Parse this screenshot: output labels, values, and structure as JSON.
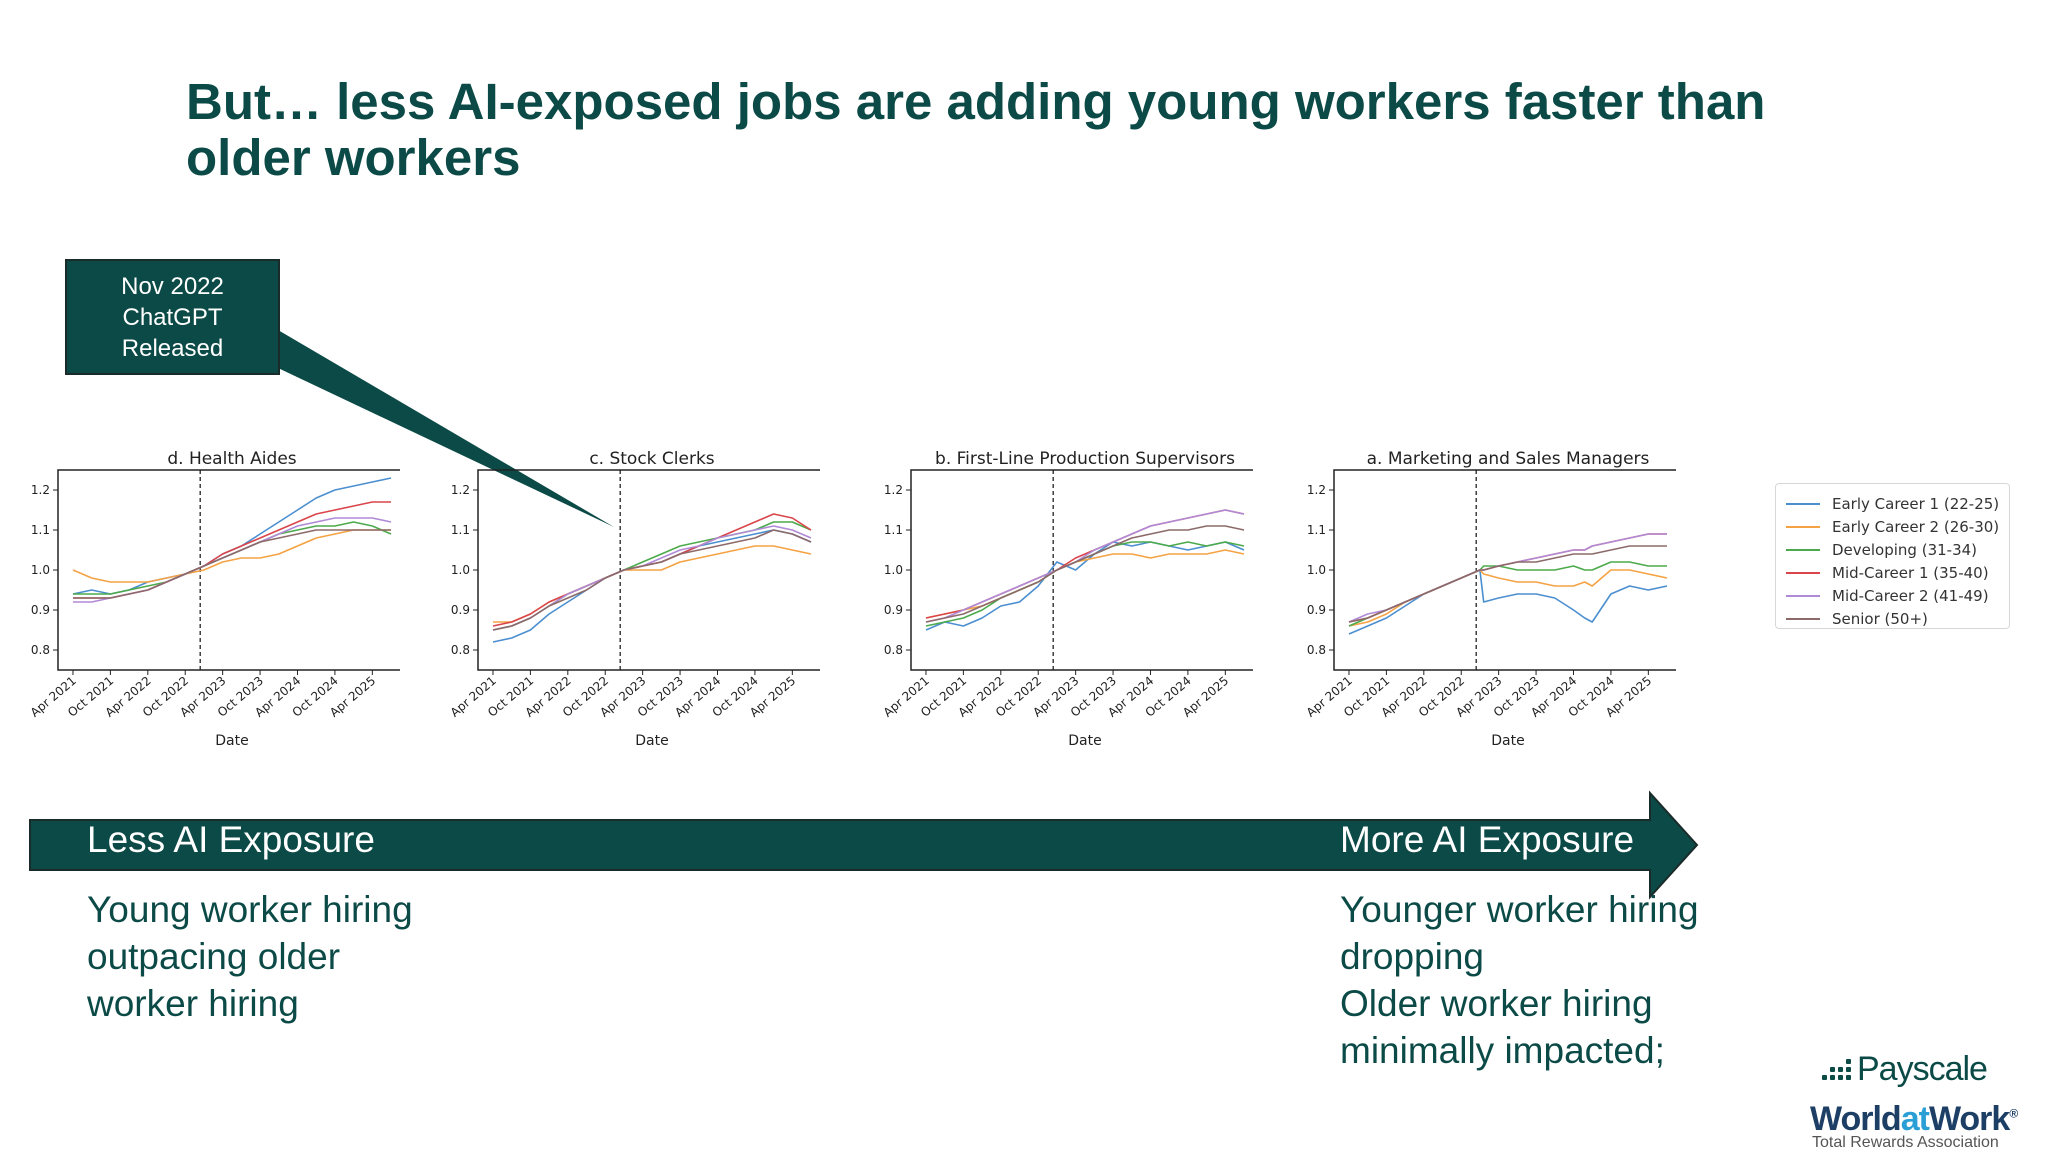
{
  "title": "But… less AI-exposed jobs are adding young workers faster than older workers",
  "callout": {
    "lines": [
      "Nov 2022",
      "ChatGPT",
      "Released"
    ],
    "color": "#0b4a46"
  },
  "colors": {
    "brand_dark": "#0b4a46",
    "logo_blue": "#2a9fd6"
  },
  "legend": [
    {
      "label": "Early Career 1 (22-25)",
      "color": "#4c8fd0"
    },
    {
      "label": "Early Career 2 (26-30)",
      "color": "#f5a244"
    },
    {
      "label": "Developing (31-34)",
      "color": "#4caa4c"
    },
    {
      "label": "Mid-Career 1 (35-40)",
      "color": "#d9454b"
    },
    {
      "label": "Mid-Career 2 (41-49)",
      "color": "#b08ad6"
    },
    {
      "label": "Senior (50+)",
      "color": "#8d6a6a"
    }
  ],
  "chart_data": [
    {
      "type": "line",
      "title": "d. Health Aides",
      "xlabel": "Date",
      "ylim": [
        0.75,
        1.25
      ],
      "yticks": [
        "0.8",
        "0.9",
        "1.0",
        "1.1",
        "1.2"
      ],
      "xticks": [
        "Apr 2021",
        "Oct 2021",
        "Apr 2022",
        "Oct 2022",
        "Apr 2023",
        "Oct 2023",
        "Apr 2024",
        "Oct 2024",
        "Apr 2025"
      ],
      "vline_x": 3.4,
      "x": [
        0,
        0.5,
        1,
        1.5,
        2,
        2.5,
        3,
        3.5,
        4,
        4.5,
        5,
        5.5,
        6,
        6.5,
        7,
        7.5,
        8,
        8.5
      ],
      "series": [
        {
          "name": "Early Career 1 (22-25)",
          "values": [
            0.94,
            0.95,
            0.94,
            0.95,
            0.97,
            0.98,
            0.99,
            1.01,
            1.04,
            1.06,
            1.09,
            1.12,
            1.15,
            1.18,
            1.2,
            1.21,
            1.22,
            1.23
          ]
        },
        {
          "name": "Early Career 2 (26-30)",
          "values": [
            1.0,
            0.98,
            0.97,
            0.97,
            0.97,
            0.98,
            0.99,
            1.0,
            1.02,
            1.03,
            1.03,
            1.04,
            1.06,
            1.08,
            1.09,
            1.1,
            1.1,
            1.1
          ]
        },
        {
          "name": "Developing (31-34)",
          "values": [
            0.94,
            0.94,
            0.94,
            0.95,
            0.96,
            0.97,
            0.99,
            1.01,
            1.03,
            1.05,
            1.07,
            1.09,
            1.1,
            1.11,
            1.11,
            1.12,
            1.11,
            1.09
          ]
        },
        {
          "name": "Mid-Career 1 (35-40)",
          "values": [
            0.93,
            0.93,
            0.93,
            0.94,
            0.95,
            0.97,
            0.99,
            1.01,
            1.04,
            1.06,
            1.08,
            1.1,
            1.12,
            1.14,
            1.15,
            1.16,
            1.17,
            1.17
          ]
        },
        {
          "name": "Mid-Career 2 (41-49)",
          "values": [
            0.92,
            0.92,
            0.93,
            0.94,
            0.95,
            0.97,
            0.99,
            1.01,
            1.03,
            1.05,
            1.07,
            1.09,
            1.11,
            1.12,
            1.13,
            1.13,
            1.13,
            1.12
          ]
        },
        {
          "name": "Senior (50+)",
          "values": [
            0.93,
            0.93,
            0.93,
            0.94,
            0.95,
            0.97,
            0.99,
            1.01,
            1.03,
            1.05,
            1.07,
            1.08,
            1.09,
            1.1,
            1.1,
            1.1,
            1.1,
            1.1
          ]
        }
      ]
    },
    {
      "type": "line",
      "title": "c. Stock Clerks",
      "xlabel": "Date",
      "ylim": [
        0.75,
        1.25
      ],
      "yticks": [
        "0.8",
        "0.9",
        "1.0",
        "1.1",
        "1.2"
      ],
      "xticks": [
        "Apr 2021",
        "Oct 2021",
        "Apr 2022",
        "Oct 2022",
        "Apr 2023",
        "Oct 2023",
        "Apr 2024",
        "Oct 2024",
        "Apr 2025"
      ],
      "vline_x": 3.4,
      "x": [
        0,
        0.5,
        1,
        1.5,
        2,
        2.5,
        3,
        3.5,
        4,
        4.5,
        5,
        5.5,
        6,
        6.5,
        7,
        7.5,
        8,
        8.5
      ],
      "series": [
        {
          "name": "Early Career 1 (22-25)",
          "values": [
            0.82,
            0.83,
            0.85,
            0.89,
            0.92,
            0.95,
            0.98,
            1.0,
            1.01,
            1.02,
            1.04,
            1.06,
            1.07,
            1.08,
            1.09,
            1.1,
            1.09,
            1.07
          ]
        },
        {
          "name": "Early Career 2 (26-30)",
          "values": [
            0.87,
            0.87,
            0.89,
            0.92,
            0.94,
            0.96,
            0.98,
            1.0,
            1.0,
            1.0,
            1.02,
            1.03,
            1.04,
            1.05,
            1.06,
            1.06,
            1.05,
            1.04
          ]
        },
        {
          "name": "Developing (31-34)",
          "values": [
            0.85,
            0.86,
            0.88,
            0.91,
            0.94,
            0.96,
            0.98,
            1.0,
            1.02,
            1.04,
            1.06,
            1.07,
            1.08,
            1.09,
            1.1,
            1.12,
            1.12,
            1.1
          ]
        },
        {
          "name": "Mid-Career 1 (35-40)",
          "values": [
            0.86,
            0.87,
            0.89,
            0.92,
            0.94,
            0.96,
            0.98,
            1.0,
            1.01,
            1.02,
            1.04,
            1.06,
            1.08,
            1.1,
            1.12,
            1.14,
            1.13,
            1.1
          ]
        },
        {
          "name": "Mid-Career 2 (41-49)",
          "values": [
            0.85,
            0.86,
            0.88,
            0.91,
            0.94,
            0.96,
            0.98,
            1.0,
            1.01,
            1.03,
            1.05,
            1.06,
            1.08,
            1.09,
            1.1,
            1.11,
            1.1,
            1.08
          ]
        },
        {
          "name": "Senior (50+)",
          "values": [
            0.85,
            0.86,
            0.88,
            0.91,
            0.93,
            0.95,
            0.98,
            1.0,
            1.01,
            1.02,
            1.04,
            1.05,
            1.06,
            1.07,
            1.08,
            1.1,
            1.09,
            1.07
          ]
        }
      ]
    },
    {
      "type": "line",
      "title": "b. First-Line Production Supervisors",
      "xlabel": "Date",
      "ylim": [
        0.75,
        1.25
      ],
      "yticks": [
        "0.8",
        "0.9",
        "1.0",
        "1.1",
        "1.2"
      ],
      "xticks": [
        "Apr 2021",
        "Oct 2021",
        "Apr 2022",
        "Oct 2022",
        "Apr 2023",
        "Oct 2023",
        "Apr 2024",
        "Oct 2024",
        "Apr 2025"
      ],
      "vline_x": 3.4,
      "x": [
        0,
        0.5,
        1,
        1.5,
        2,
        2.5,
        3,
        3.5,
        4,
        4.5,
        5,
        5.5,
        6,
        6.5,
        7,
        7.5,
        8,
        8.5
      ],
      "series": [
        {
          "name": "Early Career 1 (22-25)",
          "values": [
            0.85,
            0.87,
            0.86,
            0.88,
            0.91,
            0.92,
            0.96,
            1.02,
            1.0,
            1.04,
            1.07,
            1.06,
            1.07,
            1.06,
            1.05,
            1.06,
            1.07,
            1.05
          ]
        },
        {
          "name": "Early Career 2 (26-30)",
          "values": [
            0.88,
            0.89,
            0.9,
            0.91,
            0.93,
            0.95,
            0.97,
            1.0,
            1.02,
            1.03,
            1.04,
            1.04,
            1.03,
            1.04,
            1.04,
            1.04,
            1.05,
            1.04
          ]
        },
        {
          "name": "Developing (31-34)",
          "values": [
            0.86,
            0.87,
            0.88,
            0.9,
            0.93,
            0.95,
            0.97,
            1.0,
            1.02,
            1.04,
            1.06,
            1.07,
            1.07,
            1.06,
            1.07,
            1.06,
            1.07,
            1.06
          ]
        },
        {
          "name": "Mid-Career 1 (35-40)",
          "values": [
            0.88,
            0.89,
            0.9,
            0.92,
            0.94,
            0.96,
            0.98,
            1.0,
            1.03,
            1.05,
            1.07,
            1.09,
            1.11,
            1.12,
            1.13,
            1.14,
            1.15,
            1.14
          ]
        },
        {
          "name": "Mid-Career 2 (41-49)",
          "values": [
            0.87,
            0.88,
            0.9,
            0.92,
            0.94,
            0.96,
            0.98,
            1.0,
            1.02,
            1.05,
            1.07,
            1.09,
            1.11,
            1.12,
            1.13,
            1.14,
            1.15,
            1.14
          ]
        },
        {
          "name": "Senior (50+)",
          "values": [
            0.87,
            0.88,
            0.89,
            0.91,
            0.93,
            0.95,
            0.97,
            1.0,
            1.02,
            1.04,
            1.06,
            1.08,
            1.09,
            1.1,
            1.1,
            1.11,
            1.11,
            1.1
          ]
        }
      ]
    },
    {
      "type": "line",
      "title": "a. Marketing and Sales Managers",
      "xlabel": "Date",
      "ylim": [
        0.75,
        1.25
      ],
      "yticks": [
        "0.8",
        "0.9",
        "1.0",
        "1.1",
        "1.2"
      ],
      "xticks": [
        "Apr 2021",
        "Oct 2021",
        "Apr 2022",
        "Oct 2022",
        "Apr 2023",
        "Oct 2023",
        "Apr 2024",
        "Oct 2024",
        "Apr 2025"
      ],
      "vline_x": 3.4,
      "x": [
        0,
        0.5,
        1,
        1.5,
        2,
        2.5,
        3,
        3.5,
        3.6,
        4,
        4.5,
        5,
        5.5,
        6,
        6.3,
        6.5,
        7,
        7.5,
        8,
        8.5
      ],
      "series": [
        {
          "name": "Early Career 1 (22-25)",
          "values": [
            0.84,
            0.86,
            0.88,
            0.91,
            0.94,
            0.96,
            0.98,
            1.0,
            0.92,
            0.93,
            0.94,
            0.94,
            0.93,
            0.9,
            0.88,
            0.87,
            0.94,
            0.96,
            0.95,
            0.96
          ]
        },
        {
          "name": "Early Career 2 (26-30)",
          "values": [
            0.86,
            0.87,
            0.89,
            0.92,
            0.94,
            0.96,
            0.98,
            1.0,
            0.99,
            0.98,
            0.97,
            0.97,
            0.96,
            0.96,
            0.97,
            0.96,
            1.0,
            1.0,
            0.99,
            0.98
          ]
        },
        {
          "name": "Developing (31-34)",
          "values": [
            0.86,
            0.88,
            0.9,
            0.92,
            0.94,
            0.96,
            0.98,
            1.0,
            1.01,
            1.01,
            1.0,
            1.0,
            1.0,
            1.01,
            1.0,
            1.0,
            1.02,
            1.02,
            1.01,
            1.01
          ]
        },
        {
          "name": "Mid-Career 1 (35-40)",
          "values": [
            0.87,
            0.88,
            0.9,
            0.92,
            0.94,
            0.96,
            0.98,
            1.0,
            1.0,
            1.01,
            1.02,
            1.03,
            1.04,
            1.05,
            1.05,
            1.06,
            1.07,
            1.08,
            1.09,
            1.09
          ]
        },
        {
          "name": "Mid-Career 2 (41-49)",
          "values": [
            0.87,
            0.89,
            0.9,
            0.92,
            0.94,
            0.96,
            0.98,
            1.0,
            1.0,
            1.01,
            1.02,
            1.03,
            1.04,
            1.05,
            1.05,
            1.06,
            1.07,
            1.08,
            1.09,
            1.09
          ]
        },
        {
          "name": "Senior (50+)",
          "values": [
            0.87,
            0.88,
            0.9,
            0.92,
            0.94,
            0.96,
            0.98,
            1.0,
            1.0,
            1.01,
            1.02,
            1.02,
            1.03,
            1.04,
            1.04,
            1.04,
            1.05,
            1.06,
            1.06,
            1.06
          ]
        }
      ]
    }
  ],
  "arrow": {
    "left_label": "Less AI Exposure",
    "right_label": "More AI Exposure"
  },
  "notes": {
    "left": [
      "Young worker hiring",
      "outpacing older",
      "worker hiring"
    ],
    "right": [
      "Younger worker hiring",
      "dropping",
      "Older worker hiring",
      "minimally impacted;"
    ]
  },
  "logos": {
    "payscale": "Payscale",
    "worldatwork": [
      "World",
      "at",
      "Work"
    ],
    "tagline": "Total Rewards Association"
  }
}
